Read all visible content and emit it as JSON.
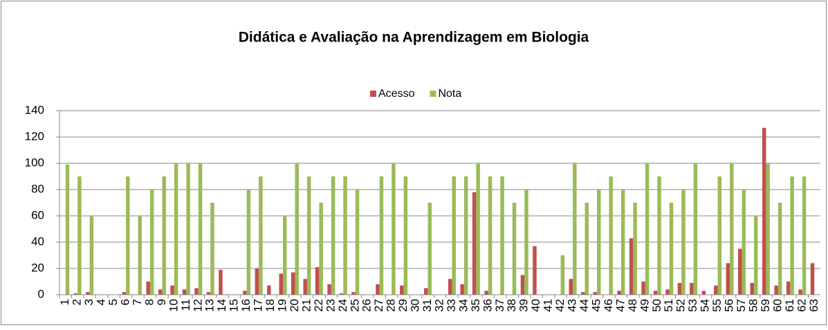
{
  "chart_data": {
    "type": "bar",
    "title": "Didática e Avaliação na Aprendizagem em Biologia",
    "categories": [
      "1",
      "2",
      "3",
      "4",
      "5",
      "6",
      "7",
      "8",
      "9",
      "10",
      "11",
      "12",
      "13",
      "14",
      "15",
      "16",
      "17",
      "18",
      "19",
      "20",
      "21",
      "22",
      "23",
      "24",
      "25",
      "26",
      "27",
      "28",
      "29",
      "30",
      "31",
      "32",
      "33",
      "34",
      "35",
      "36",
      "37",
      "38",
      "39",
      "40",
      "41",
      "42",
      "43",
      "44",
      "45",
      "46",
      "47",
      "48",
      "49",
      "50",
      "51",
      "52",
      "53",
      "54",
      "55",
      "56",
      "57",
      "58",
      "59",
      "60",
      "61",
      "62",
      "63"
    ],
    "series": [
      {
        "name": "Acesso",
        "color": "#c0504d",
        "values": [
          0,
          1,
          2,
          0,
          0,
          2,
          0,
          10,
          4,
          7,
          4,
          5,
          2,
          19,
          0,
          3,
          20,
          7,
          16,
          17,
          12,
          21,
          8,
          1,
          2,
          0,
          8,
          0,
          7,
          0,
          5,
          0,
          12,
          8,
          78,
          3,
          0,
          0,
          15,
          37,
          0,
          0,
          12,
          2,
          2,
          0,
          3,
          43,
          10,
          3,
          4,
          9,
          9,
          3,
          7,
          24,
          35,
          9,
          127,
          7,
          10,
          4,
          24
        ]
      },
      {
        "name": "Nota",
        "color": "#9bbb59",
        "values": [
          99,
          90,
          60,
          0,
          0,
          90,
          60,
          80,
          90,
          100,
          100,
          100,
          70,
          0,
          0,
          80,
          90,
          0,
          60,
          100,
          90,
          70,
          90,
          90,
          80,
          0,
          90,
          100,
          90,
          0,
          70,
          0,
          90,
          90,
          100,
          90,
          90,
          70,
          80,
          0,
          0,
          30,
          100,
          70,
          80,
          90,
          80,
          70,
          100,
          90,
          70,
          80,
          100,
          0,
          90,
          100,
          80,
          60,
          100,
          70,
          90,
          90,
          0
        ]
      }
    ],
    "ylim": [
      0,
      140
    ],
    "yticks": [
      0,
      20,
      40,
      60,
      80,
      100,
      120,
      140
    ],
    "grid": true,
    "legend": "top"
  }
}
